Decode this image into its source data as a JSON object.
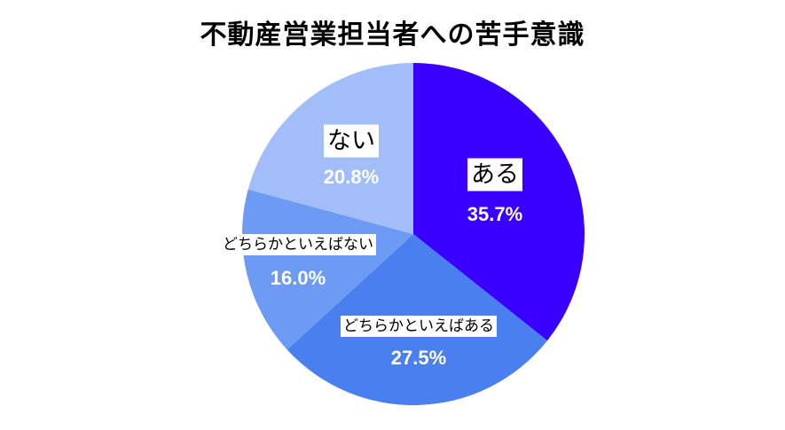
{
  "chart_data": {
    "type": "pie",
    "title": "不動産営業担当者への苦手意識",
    "start_angle_deg": 0,
    "direction": "clockwise",
    "slices": [
      {
        "label": "ある",
        "value": 35.7,
        "value_label": "35.7%",
        "color": "#3a00ff"
      },
      {
        "label": "どちらかといえばある",
        "value": 27.5,
        "value_label": "27.5%",
        "color": "#4a7fef"
      },
      {
        "label": "どちらかといえばない",
        "value": 16.0,
        "value_label": "16.0%",
        "color": "#6d9af2"
      },
      {
        "label": "ない",
        "value": 20.8,
        "value_label": "20.8%",
        "color": "#a2bdf7"
      }
    ],
    "legend": "none"
  }
}
